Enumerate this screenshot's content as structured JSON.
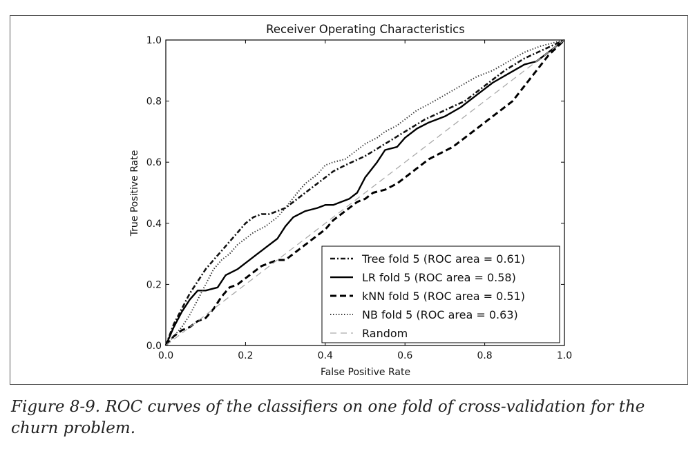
{
  "chart_data": {
    "type": "line",
    "title": "Receiver Operating Characteristics",
    "xlabel": "False Positive Rate",
    "ylabel": "True Positive Rate",
    "xlim": [
      0,
      1
    ],
    "ylim": [
      0,
      1
    ],
    "xticks": [
      "0.0",
      "0.2",
      "0.4",
      "0.6",
      "0.8",
      "1.0"
    ],
    "yticks": [
      "0.0",
      "0.2",
      "0.4",
      "0.6",
      "0.8",
      "1.0"
    ],
    "grid": false,
    "legend_position": "lower-right",
    "series": [
      {
        "name": "Tree fold 5 (ROC area = 0.61)",
        "style": "dashdot",
        "x": [
          0,
          0.02,
          0.04,
          0.06,
          0.08,
          0.1,
          0.12,
          0.14,
          0.16,
          0.18,
          0.2,
          0.22,
          0.24,
          0.26,
          0.28,
          0.3,
          0.32,
          0.35,
          0.38,
          0.4,
          0.42,
          0.45,
          0.5,
          0.55,
          0.6,
          0.65,
          0.7,
          0.75,
          0.8,
          0.85,
          0.9,
          0.95,
          1
        ],
        "y": [
          0,
          0.07,
          0.12,
          0.17,
          0.21,
          0.25,
          0.28,
          0.31,
          0.34,
          0.37,
          0.4,
          0.42,
          0.43,
          0.43,
          0.44,
          0.45,
          0.47,
          0.5,
          0.53,
          0.55,
          0.57,
          0.59,
          0.62,
          0.66,
          0.7,
          0.74,
          0.77,
          0.8,
          0.85,
          0.9,
          0.94,
          0.97,
          1
        ]
      },
      {
        "name": "LR fold 5 (ROC area = 0.58)",
        "style": "solid",
        "x": [
          0,
          0.02,
          0.04,
          0.06,
          0.08,
          0.1,
          0.13,
          0.15,
          0.18,
          0.2,
          0.23,
          0.25,
          0.28,
          0.3,
          0.32,
          0.35,
          0.38,
          0.4,
          0.42,
          0.44,
          0.46,
          0.48,
          0.5,
          0.53,
          0.55,
          0.58,
          0.6,
          0.63,
          0.66,
          0.7,
          0.74,
          0.78,
          0.82,
          0.86,
          0.9,
          0.93,
          0.96,
          1
        ],
        "y": [
          0,
          0.06,
          0.11,
          0.15,
          0.18,
          0.18,
          0.19,
          0.23,
          0.25,
          0.27,
          0.3,
          0.32,
          0.35,
          0.39,
          0.42,
          0.44,
          0.45,
          0.46,
          0.46,
          0.47,
          0.48,
          0.5,
          0.55,
          0.6,
          0.64,
          0.65,
          0.68,
          0.71,
          0.73,
          0.75,
          0.78,
          0.82,
          0.86,
          0.89,
          0.92,
          0.93,
          0.96,
          1
        ]
      },
      {
        "name": "kNN fold 5 (ROC area = 0.51)",
        "style": "dashed",
        "x": [
          0,
          0.02,
          0.04,
          0.06,
          0.08,
          0.1,
          0.12,
          0.14,
          0.16,
          0.18,
          0.2,
          0.22,
          0.24,
          0.26,
          0.28,
          0.3,
          0.32,
          0.34,
          0.36,
          0.38,
          0.4,
          0.42,
          0.45,
          0.48,
          0.5,
          0.52,
          0.55,
          0.58,
          0.6,
          0.63,
          0.66,
          0.69,
          0.72,
          0.75,
          0.78,
          0.81,
          0.84,
          0.87,
          0.9,
          0.93,
          0.96,
          1
        ],
        "y": [
          0,
          0.03,
          0.05,
          0.06,
          0.08,
          0.09,
          0.12,
          0.16,
          0.19,
          0.2,
          0.22,
          0.24,
          0.26,
          0.27,
          0.28,
          0.28,
          0.3,
          0.32,
          0.34,
          0.36,
          0.38,
          0.41,
          0.44,
          0.47,
          0.48,
          0.5,
          0.51,
          0.53,
          0.55,
          0.58,
          0.61,
          0.63,
          0.65,
          0.68,
          0.71,
          0.74,
          0.77,
          0.8,
          0.85,
          0.9,
          0.95,
          1
        ]
      },
      {
        "name": "NB fold 5 (ROC area = 0.63)",
        "style": "dotted",
        "x": [
          0,
          0.02,
          0.04,
          0.06,
          0.08,
          0.1,
          0.12,
          0.14,
          0.16,
          0.18,
          0.2,
          0.22,
          0.25,
          0.28,
          0.3,
          0.33,
          0.35,
          0.38,
          0.4,
          0.42,
          0.45,
          0.48,
          0.5,
          0.53,
          0.55,
          0.58,
          0.6,
          0.63,
          0.66,
          0.7,
          0.74,
          0.78,
          0.82,
          0.86,
          0.9,
          0.94,
          0.97,
          1
        ],
        "y": [
          0,
          0.03,
          0.06,
          0.1,
          0.15,
          0.2,
          0.25,
          0.28,
          0.3,
          0.33,
          0.35,
          0.37,
          0.39,
          0.42,
          0.45,
          0.5,
          0.53,
          0.56,
          0.59,
          0.6,
          0.61,
          0.64,
          0.66,
          0.68,
          0.7,
          0.72,
          0.74,
          0.77,
          0.79,
          0.82,
          0.85,
          0.88,
          0.9,
          0.93,
          0.96,
          0.98,
          0.99,
          1
        ]
      },
      {
        "name": "Random",
        "style": "random",
        "x": [
          0,
          1
        ],
        "y": [
          0,
          1
        ]
      }
    ]
  },
  "caption": "Figure 8-9. ROC curves of the classifiers on one fold of cross-validation for the churn problem."
}
